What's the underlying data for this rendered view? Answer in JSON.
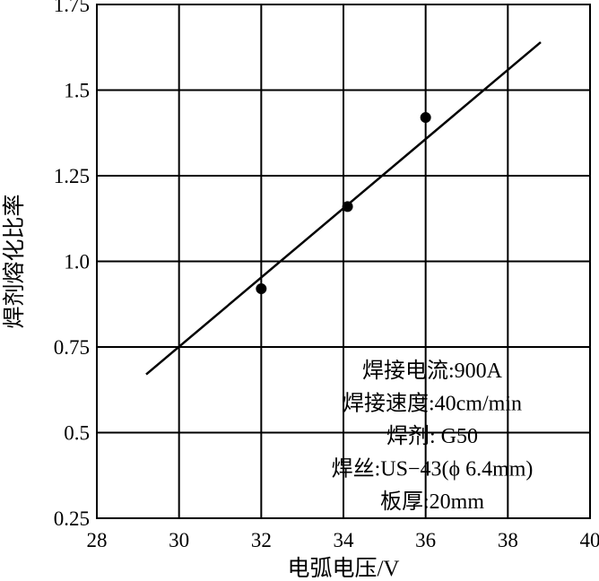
{
  "chart_data": {
    "type": "scatter",
    "title": "",
    "xlabel": "电弧电压/V",
    "ylabel": "焊剂熔化比率",
    "xlim": [
      28,
      40
    ],
    "ylim": [
      0.25,
      1.75
    ],
    "xticks": [
      28,
      30,
      32,
      34,
      36,
      38,
      40
    ],
    "yticks": [
      0.25,
      0.5,
      0.75,
      1.0,
      1.25,
      1.5,
      1.75
    ],
    "xtick_labels": [
      "28",
      "30",
      "32",
      "34",
      "36",
      "38",
      "40"
    ],
    "ytick_labels": [
      "0.25",
      "0.5",
      "0.75",
      "1.0",
      "1.25",
      "1.5",
      "1.75"
    ],
    "grid": true,
    "series": [
      {
        "type": "scatter",
        "x": [
          32.0,
          34.1,
          36.0
        ],
        "y": [
          0.92,
          1.16,
          1.42
        ],
        "color": "#000000"
      },
      {
        "type": "line",
        "x": [
          29.2,
          38.8
        ],
        "y": [
          0.67,
          1.64
        ],
        "color": "#000000"
      }
    ],
    "annotations": [
      "焊接电流:900A",
      "焊接速度:40cm/min",
      "焊剂: G50",
      "焊丝:US−43(ϕ 6.4mm)",
      "板厚:20mm"
    ]
  }
}
